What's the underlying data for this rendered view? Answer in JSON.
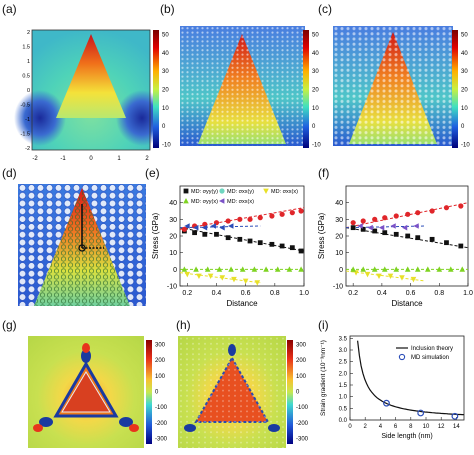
{
  "panel_labels": [
    "(a)",
    "(b)",
    "(c)",
    "(d)",
    "(e)",
    "(f)",
    "(g)",
    "(h)",
    "(i)"
  ],
  "colorbars": {
    "abc": {
      "ticks": [
        "50",
        "40",
        "30",
        "20",
        "10",
        "0",
        "-10"
      ]
    },
    "gh": {
      "ticks": [
        "300",
        "200",
        "100",
        "0",
        "-100",
        "-200",
        "-300"
      ]
    }
  },
  "panel_a_axes": {
    "x_ticks": [
      "-2",
      "-1",
      "0",
      "1",
      "2"
    ],
    "y_ticks": [
      "2",
      "1.5",
      "1",
      "0.5",
      "0",
      "-0.5",
      "-1",
      "-1.5",
      "-2"
    ]
  },
  "colors": {
    "field_low": "#1e3fb0",
    "field_mid": "#40c8a8",
    "field_high": "#e8341c",
    "red_series": "#e0262a",
    "black_series": "#111111",
    "blue_series": "#2b4db8",
    "yellow_series": "#e8e028",
    "green_series": "#7ed321",
    "teal_series": "#6fd6c0",
    "purple_series": "#7b52c7"
  },
  "chart_data": [
    {
      "panel": "(e)",
      "type": "scatter",
      "xlabel": "Distance",
      "ylabel": "Stress (GPa)",
      "xlim": [
        0.15,
        1.0
      ],
      "ylim": [
        -10,
        50
      ],
      "x_ticks": [
        "0.2",
        "0.4",
        "0.6",
        "0.8",
        "1.0"
      ],
      "y_ticks": [
        "-10",
        "0",
        "10",
        "20",
        "30",
        "40"
      ],
      "legend": [
        "MD: σyy(y)",
        "MD: σxx(y)",
        "MD: σxx(x)",
        "MD: σyy(x)",
        "MD: σxx(x)"
      ],
      "legend_position": "top",
      "series": [
        {
          "name": "MD: σyy(y)",
          "color": "#111111",
          "marker": "square",
          "x": [
            0.18,
            0.25,
            0.32,
            0.4,
            0.48,
            0.56,
            0.63,
            0.7,
            0.78,
            0.85,
            0.92,
            0.98
          ],
          "y": [
            23,
            22,
            21,
            21,
            19,
            18,
            17,
            16,
            15,
            14,
            13,
            11
          ]
        },
        {
          "name": "",
          "color": "#e0262a",
          "marker": "circle",
          "x": [
            0.18,
            0.25,
            0.32,
            0.4,
            0.48,
            0.56,
            0.63,
            0.7,
            0.78,
            0.85,
            0.92,
            0.98
          ],
          "y": [
            24,
            26,
            27,
            28,
            29,
            30,
            30,
            31,
            32,
            33,
            34,
            35
          ]
        },
        {
          "name": "MD: σxx(x)",
          "color": "#2b4db8",
          "marker": "triangle-left",
          "x": [
            0.2,
            0.26,
            0.32,
            0.38,
            0.44,
            0.5
          ],
          "y": [
            26,
            25,
            25,
            26,
            25,
            26
          ]
        },
        {
          "name": "MD: σyy(x)",
          "color": "#e8e028",
          "marker": "triangle-down",
          "x": [
            0.2,
            0.28,
            0.36,
            0.44,
            0.52,
            0.6,
            0.68
          ],
          "y": [
            -3,
            -4,
            -4,
            -5,
            -6,
            -7,
            -8
          ]
        },
        {
          "name": "MD: σxx(x)",
          "color": "#7ed321",
          "marker": "triangle-up",
          "x": [
            0.18,
            0.26,
            0.34,
            0.42,
            0.5,
            0.58,
            0.66,
            0.74,
            0.82,
            0.9,
            0.98
          ],
          "y": [
            0,
            0,
            0,
            0,
            0,
            0,
            0,
            0,
            0,
            0,
            0
          ]
        }
      ],
      "fit_lines": [
        {
          "color": "#e0262a",
          "x": [
            0.15,
            1.0
          ],
          "y": [
            24,
            37
          ]
        },
        {
          "color": "#111111",
          "x": [
            0.15,
            1.0
          ],
          "y": [
            25,
            11
          ]
        },
        {
          "color": "#2b4db8",
          "x": [
            0.15,
            0.7
          ],
          "y": [
            25,
            26
          ]
        },
        {
          "color": "#e8e028",
          "x": [
            0.15,
            0.7
          ],
          "y": [
            -2,
            -8
          ]
        },
        {
          "color": "#7ed321",
          "x": [
            0.15,
            1.0
          ],
          "y": [
            0,
            0
          ]
        }
      ]
    },
    {
      "panel": "(f)",
      "type": "scatter",
      "xlabel": "Distance",
      "ylabel": "Stress (GPa)",
      "xlim": [
        0.15,
        1.0
      ],
      "ylim": [
        -10,
        50
      ],
      "x_ticks": [
        "0.2",
        "0.4",
        "0.6",
        "0.8",
        "1.0"
      ],
      "y_ticks": [
        "-10",
        "0",
        "10",
        "20",
        "30",
        "40"
      ],
      "series": [
        {
          "name": "",
          "color": "#e0262a",
          "marker": "circle",
          "x": [
            0.2,
            0.27,
            0.35,
            0.42,
            0.5,
            0.58,
            0.65,
            0.75,
            0.85,
            0.95
          ],
          "y": [
            28,
            29,
            30,
            31,
            32,
            33,
            34,
            35,
            37,
            38
          ]
        },
        {
          "name": "",
          "color": "#111111",
          "marker": "square",
          "x": [
            0.2,
            0.27,
            0.35,
            0.42,
            0.5,
            0.58,
            0.65,
            0.75,
            0.85,
            0.95
          ],
          "y": [
            25,
            24,
            23,
            22,
            21,
            20,
            19,
            18,
            16,
            14
          ]
        },
        {
          "name": "",
          "color": "#7b52c7",
          "marker": "triangle-left",
          "x": [
            0.25,
            0.32,
            0.4,
            0.48,
            0.56,
            0.64
          ],
          "y": [
            26,
            25,
            25,
            26,
            25,
            26
          ]
        },
        {
          "name": "",
          "color": "#e8e028",
          "marker": "triangle-down",
          "x": [
            0.22,
            0.3,
            0.38,
            0.46,
            0.54,
            0.62
          ],
          "y": [
            -2,
            -3,
            -4,
            -4,
            -5,
            -6
          ]
        },
        {
          "name": "",
          "color": "#7ed321",
          "marker": "triangle-up",
          "x": [
            0.2,
            0.27,
            0.35,
            0.42,
            0.5,
            0.58,
            0.65,
            0.72,
            0.8,
            0.88,
            0.96
          ],
          "y": [
            0,
            0,
            0,
            0,
            0,
            0,
            0,
            0,
            0,
            0,
            0
          ]
        }
      ],
      "fit_lines": [
        {
          "color": "#e0262a",
          "x": [
            0.15,
            1.0
          ],
          "y": [
            25,
            40
          ]
        },
        {
          "color": "#111111",
          "x": [
            0.15,
            1.0
          ],
          "y": [
            25,
            13
          ]
        },
        {
          "color": "#2b4db8",
          "x": [
            0.15,
            0.7
          ],
          "y": [
            25,
            26
          ]
        },
        {
          "color": "#e8e028",
          "x": [
            0.15,
            0.7
          ],
          "y": [
            -1,
            -7
          ]
        },
        {
          "color": "#7ed321",
          "x": [
            0.15,
            1.0
          ],
          "y": [
            0,
            0
          ]
        }
      ]
    },
    {
      "panel": "(i)",
      "type": "line",
      "xlabel": "Side length (nm)",
      "ylabel": "Strain gradient (10⁻³nm⁻¹)",
      "xlim": [
        0,
        15
      ],
      "ylim": [
        0,
        3.6
      ],
      "x_ticks": [
        "0",
        "2",
        "4",
        "6",
        "8",
        "10",
        "12",
        "14"
      ],
      "y_ticks": [
        "0.0",
        "0.5",
        "1.0",
        "1.5",
        "2.0",
        "2.5",
        "3.0",
        "3.5"
      ],
      "legend": [
        "Inclusion theory",
        "MD simulation"
      ],
      "legend_position": "top-right",
      "curve": {
        "name": "Inclusion theory",
        "color": "#111111",
        "k": 3.4,
        "x_start": 1.0,
        "x_end": 15
      },
      "points": {
        "name": "MD simulation",
        "color": "#2b4db8",
        "x": [
          4.8,
          9.3,
          13.8
        ],
        "y": [
          0.72,
          0.3,
          0.16
        ]
      }
    }
  ]
}
